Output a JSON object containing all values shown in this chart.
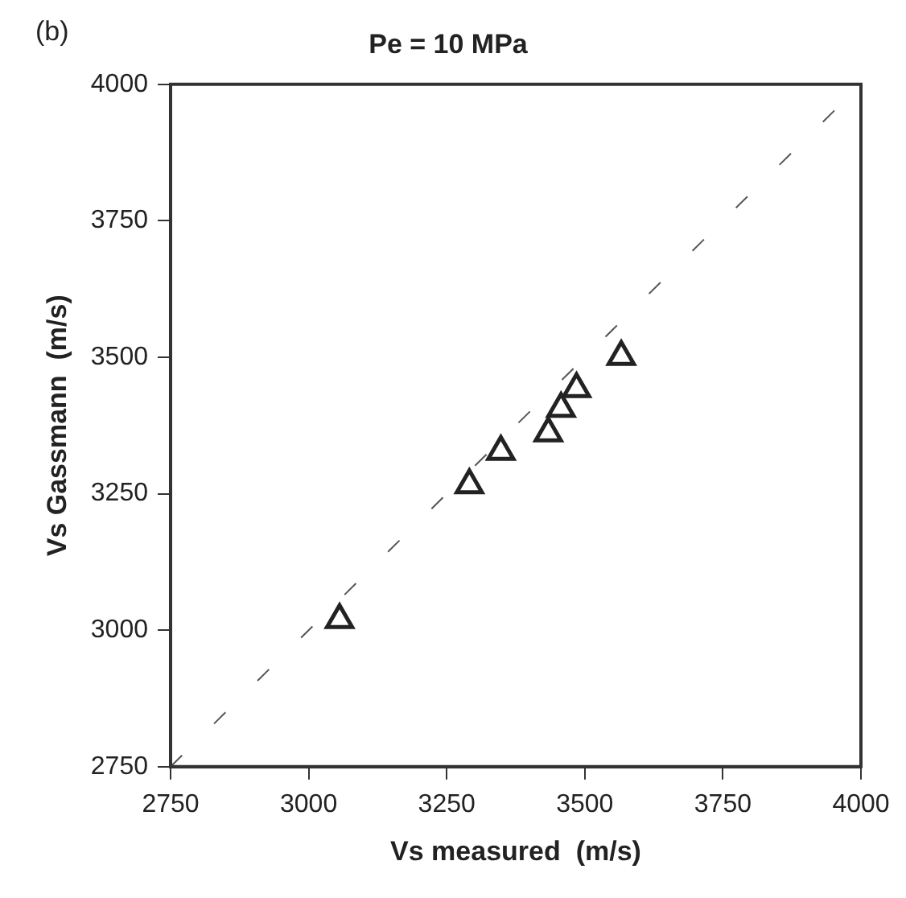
{
  "chart_data": {
    "type": "scatter",
    "title": "Pe = 10 MPa",
    "xlabel": "Vs measured  (m/s)",
    "ylabel": "Vs Gassmann  (m/s)",
    "annotations": [
      "(b)"
    ],
    "series": [
      {
        "color": "#222222",
        "marker": "triangle",
        "x": [
          3056,
          3291,
          3348,
          3434,
          3457,
          3485,
          3566
        ],
        "values": [
          3019,
          3266,
          3327,
          3361,
          3406,
          3442,
          3501
        ]
      },
      {
        "type": "line",
        "color": "#555555",
        "line_style": "dashed",
        "marker": "none",
        "x": [
          2750,
          4000
        ],
        "values": [
          2750,
          4000
        ]
      }
    ],
    "xlim": [
      2750,
      4000
    ],
    "xticks": [
      2750,
      3000,
      3250,
      3500,
      3750,
      4000
    ],
    "ylim": [
      2750,
      4000
    ],
    "yticks": [
      2750,
      3000,
      3250,
      3500,
      3750,
      4000
    ],
    "grid": false,
    "legend": false
  }
}
